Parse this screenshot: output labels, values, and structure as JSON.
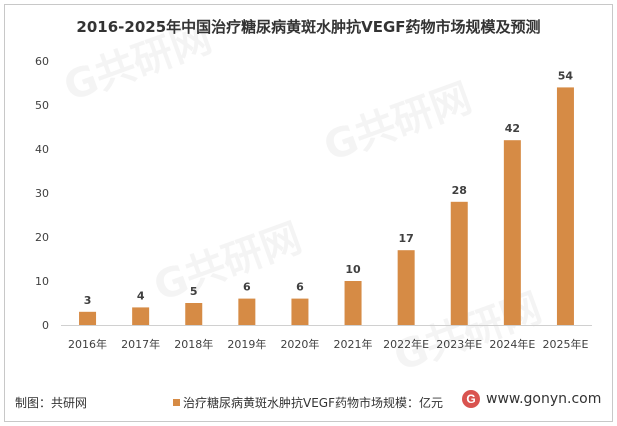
{
  "chart_data": {
    "type": "bar",
    "title": "2016-2025年中国治疗糖尿病黄斑水肿抗VEGF药物市场规模及预测",
    "categories": [
      "2016年",
      "2017年",
      "2018年",
      "2019年",
      "2020年",
      "2021年",
      "2022年E",
      "2023年E",
      "2024年E",
      "2025年E"
    ],
    "values": [
      3,
      4,
      5,
      6,
      6,
      10,
      17,
      28,
      42,
      54
    ],
    "yticks": [
      "0",
      "10",
      "20",
      "30",
      "40",
      "50",
      "60"
    ],
    "ylim": [
      0,
      60
    ],
    "xlabel": "",
    "ylabel": "",
    "legend": "治疗糖尿病黄斑水肿抗VEGF药物市场规模：亿元",
    "series_color": "#D68B45"
  },
  "footer": {
    "source": "制图：共研网",
    "website": "www.gonyn.com",
    "logo_letter": "G"
  },
  "watermark": "G共研网"
}
